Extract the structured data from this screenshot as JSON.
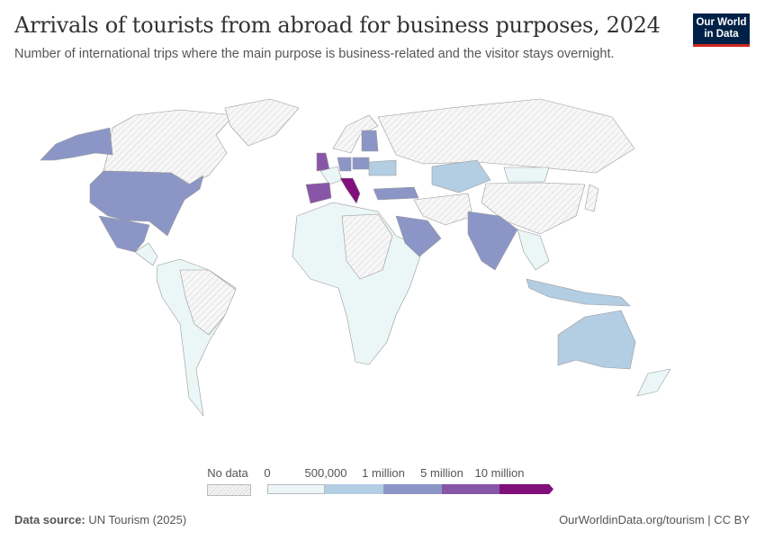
{
  "header": {
    "title": "Arrivals of tourists from abroad for business purposes, 2024",
    "subtitle": "Number of international trips where the main purpose is business-related and the visitor stays overnight.",
    "logo_text": "Our World in Data"
  },
  "legend": {
    "no_data_label": "No data",
    "bins": [
      "0",
      "500,000",
      "1 million",
      "5 million",
      "10 million"
    ],
    "colors": [
      "#ebf6f7",
      "#b3cde3",
      "#8c96c6",
      "#8856a7",
      "#810f7c"
    ],
    "no_data_color": "#e6e6e6"
  },
  "footer": {
    "source_label": "Data source:",
    "source": "UN Tourism (2025)",
    "link": "OurWorldinData.org/tourism | CC BY"
  }
}
